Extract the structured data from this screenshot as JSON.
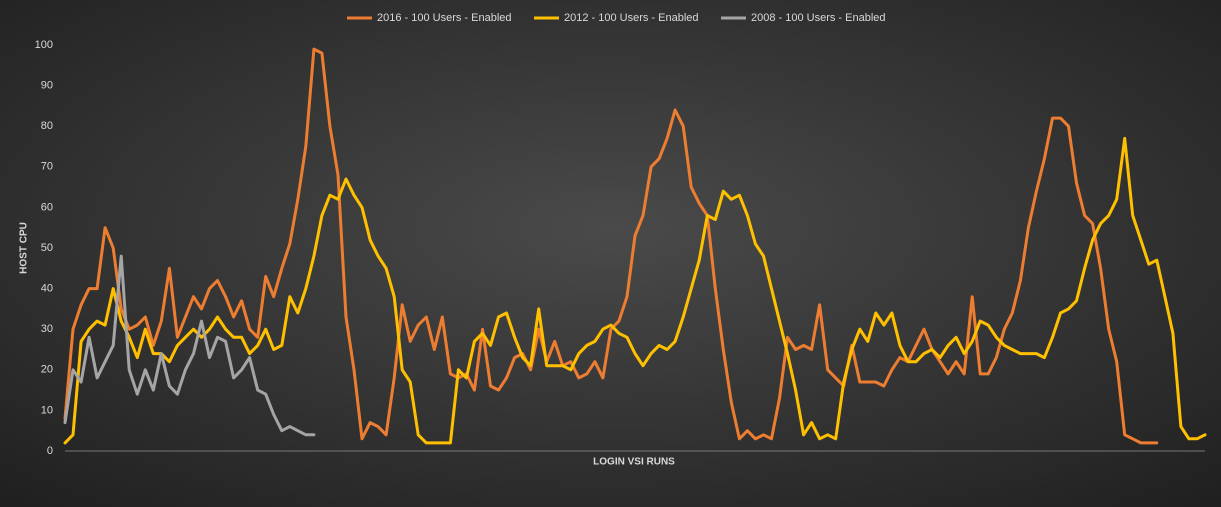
{
  "chart_data": {
    "type": "line",
    "y_label": "HOST CPU",
    "x_label": "LOGIN VSI RUNS",
    "ylim": [
      0,
      100
    ],
    "yticks": [
      0,
      10,
      20,
      30,
      40,
      50,
      60,
      70,
      80,
      90,
      100
    ],
    "grid": false,
    "legend": "top",
    "series": [
      {
        "name": "2016 - 100 Users - Enabled",
        "color": "#ed7d31",
        "values": [
          8,
          30,
          36,
          40,
          40,
          55,
          50,
          35,
          30,
          31,
          33,
          26,
          32,
          45,
          28,
          33,
          38,
          35,
          40,
          42,
          38,
          33,
          37,
          30,
          28,
          43,
          38,
          45,
          51,
          62,
          75,
          99,
          98,
          80,
          68,
          33,
          20,
          3,
          7,
          6,
          4,
          18,
          36,
          27,
          31,
          33,
          25,
          33,
          19,
          18,
          19,
          15,
          30,
          16,
          15,
          18,
          23,
          24,
          20,
          30,
          22,
          27,
          21,
          22,
          18,
          19,
          22,
          18,
          30,
          32,
          38,
          53,
          58,
          70,
          72,
          77,
          84,
          80,
          65,
          61,
          58,
          40,
          25,
          12,
          3,
          5,
          3,
          4,
          3,
          13,
          28,
          25,
          26,
          25,
          36,
          20,
          18,
          16,
          26,
          17,
          17,
          17,
          16,
          20,
          23,
          22,
          26,
          30,
          25,
          22,
          19,
          22,
          19,
          38,
          19,
          19,
          23,
          30,
          34,
          42,
          55,
          64,
          72,
          82,
          82,
          80,
          66,
          58,
          56,
          45,
          30,
          22,
          4,
          3,
          2,
          2,
          2,
          null,
          null,
          null,
          null,
          null,
          null
        ]
      },
      {
        "name": "2012 - 100 Users - Enabled",
        "color": "#ffc000",
        "values": [
          2,
          4,
          27,
          30,
          32,
          31,
          40,
          32,
          28,
          23,
          30,
          24,
          24,
          22,
          26,
          28,
          30,
          28,
          30,
          33,
          30,
          28,
          28,
          24,
          26,
          30,
          25,
          26,
          38,
          34,
          40,
          48,
          58,
          63,
          62,
          67,
          63,
          60,
          52,
          48,
          45,
          38,
          20,
          17,
          4,
          2,
          2,
          2,
          2,
          20,
          18,
          27,
          29,
          26,
          33,
          34,
          28,
          23,
          21,
          35,
          21,
          21,
          21,
          20,
          24,
          26,
          27,
          30,
          31,
          29,
          28,
          24,
          21,
          24,
          26,
          25,
          27,
          33,
          40,
          47,
          58,
          57,
          64,
          62,
          63,
          58,
          51,
          48,
          40,
          32,
          24,
          15,
          4,
          7,
          3,
          4,
          3,
          17,
          25,
          30,
          27,
          34,
          31,
          34,
          26,
          22,
          22,
          24,
          25,
          23,
          26,
          28,
          24,
          27,
          32,
          31,
          28,
          26,
          25,
          24,
          24,
          24,
          23,
          28,
          34,
          35,
          37,
          45,
          52,
          56,
          58,
          62,
          77,
          58,
          52,
          46,
          47,
          38,
          29,
          6,
          3,
          3,
          4
        ]
      },
      {
        "name": "2008 - 100 Users - Enabled",
        "color": "#a5a5a5",
        "values": [
          7,
          20,
          17,
          28,
          18,
          22,
          26,
          48,
          20,
          14,
          20,
          15,
          24,
          16,
          14,
          20,
          24,
          32,
          23,
          28,
          27,
          18,
          20,
          23,
          15,
          14,
          9,
          5,
          6,
          5,
          4,
          4,
          null,
          null,
          null,
          null,
          null,
          null,
          null,
          null,
          null,
          null,
          null,
          null,
          null,
          null,
          null,
          null,
          null,
          null,
          null,
          null,
          null,
          null,
          null,
          null,
          null,
          null,
          null,
          null,
          null,
          null,
          null,
          null,
          null,
          null,
          null,
          null,
          null,
          null,
          null,
          null,
          null,
          null,
          null,
          null,
          null,
          null,
          null,
          null,
          null,
          null,
          null,
          null,
          null,
          null,
          null,
          null,
          null,
          null,
          null,
          null,
          null,
          null,
          null,
          null,
          null,
          null,
          null,
          null,
          null,
          null,
          null,
          null,
          null,
          null,
          null,
          null,
          null,
          null,
          null,
          null,
          null,
          null,
          null,
          null,
          null,
          null,
          null,
          null,
          null,
          null,
          null,
          null,
          null,
          null,
          null,
          null,
          null,
          null,
          null,
          null,
          null,
          null,
          null,
          null,
          null,
          null,
          null,
          null,
          null,
          null,
          null
        ]
      }
    ]
  }
}
